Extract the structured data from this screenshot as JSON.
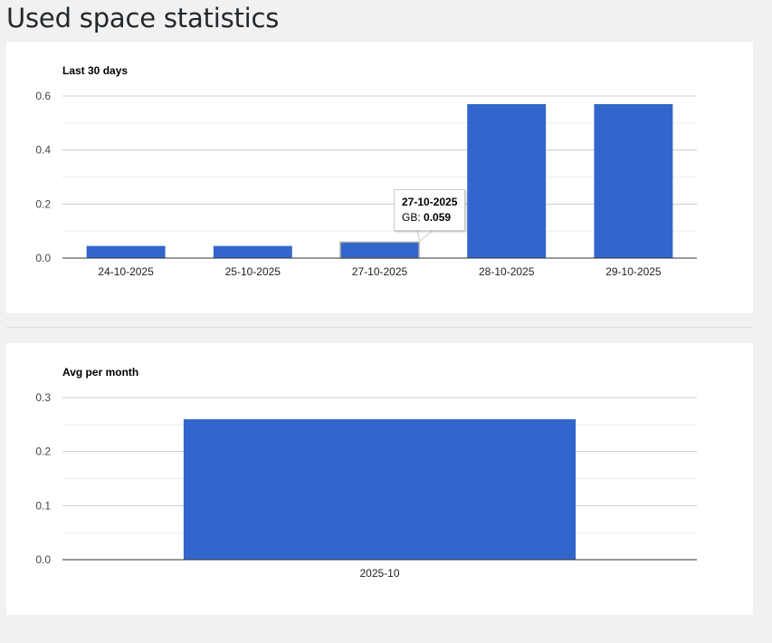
{
  "page": {
    "title": "Used space statistics"
  },
  "colors": {
    "bar": "#3366cc",
    "grid": "#cccccc",
    "minor_grid": "#ebebeb",
    "axis": "#333333"
  },
  "chart_data": [
    {
      "type": "bar",
      "title": "Last 30 days",
      "categories": [
        "24-10-2025",
        "25-10-2025",
        "27-10-2025",
        "28-10-2025",
        "29-10-2025"
      ],
      "series": [
        {
          "name": "GB",
          "values": [
            0.045,
            0.045,
            0.059,
            0.57,
            0.57
          ]
        }
      ],
      "ylim": [
        0,
        0.6
      ],
      "yticks": [
        "0.0",
        "0.2",
        "0.4",
        "0.6"
      ],
      "grid": true,
      "legend": "none",
      "tooltip": {
        "category": "27-10-2025",
        "series_label": "GB:",
        "value": "0.059"
      }
    },
    {
      "type": "bar",
      "title": "Avg per month",
      "categories": [
        "2025-10"
      ],
      "series": [
        {
          "values": [
            0.26
          ]
        }
      ],
      "ylim": [
        0,
        0.3
      ],
      "yticks": [
        "0.0",
        "0.1",
        "0.2",
        "0.3"
      ],
      "grid": true,
      "legend": "none"
    }
  ]
}
